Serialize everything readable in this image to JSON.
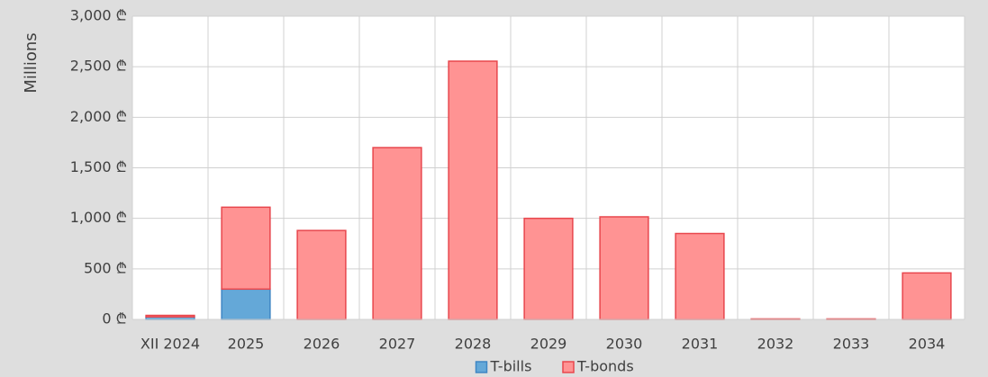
{
  "chart_data": {
    "type": "stacked_bar",
    "y_label": "Millions",
    "categories": [
      "XII 2024",
      "2025",
      "2026",
      "2027",
      "2028",
      "2029",
      "2030",
      "2031",
      "2032",
      "2033",
      "2034"
    ],
    "series": [
      {
        "name": "T-bills",
        "color": "#64a8d8",
        "edge_color": "#3f86c4",
        "values": [
          25,
          300,
          0,
          0,
          0,
          0,
          0,
          0,
          0,
          0,
          0
        ]
      },
      {
        "name": "T-bonds",
        "color": "#ff9393",
        "edge_color": "#e8474d",
        "values": [
          15,
          810,
          880,
          1700,
          2555,
          1000,
          1015,
          850,
          5,
          5,
          460
        ]
      }
    ],
    "ylim": [
      0,
      3000
    ],
    "yticks": [
      {
        "value": 0,
        "label": "0 ₾"
      },
      {
        "value": 500,
        "label": "500 ₾"
      },
      {
        "value": 1000,
        "label": "1,000 ₾"
      },
      {
        "value": 1500,
        "label": "1,500 ₾"
      },
      {
        "value": 2000,
        "label": "2,000 ₾"
      },
      {
        "value": 2500,
        "label": "2,500 ₾"
      },
      {
        "value": 3000,
        "label": "3,000 ₾"
      }
    ],
    "grid": true,
    "legend": "bottom"
  }
}
